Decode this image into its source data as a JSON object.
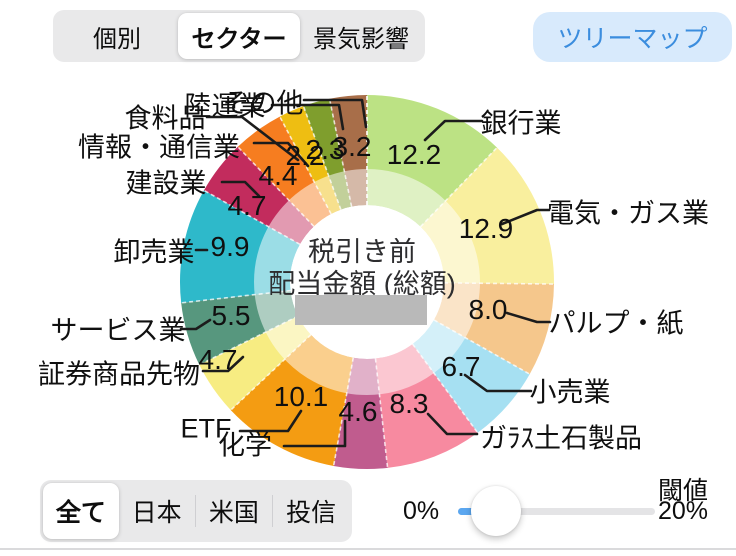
{
  "view_tabs": {
    "items": [
      {
        "label": "個別",
        "selected": false
      },
      {
        "label": "セクター",
        "selected": true
      },
      {
        "label": "景気影響",
        "selected": false
      }
    ]
  },
  "treemap_button": {
    "label": "ツリーマップ",
    "text_color": "#3b8dde",
    "bg_color": "#d8eafc"
  },
  "chart_data": {
    "type": "donut",
    "center_title_lines": [
      "税引き前",
      "配当金額 (総額)"
    ],
    "center_value_masked": true,
    "start_angle_deg": 0,
    "direction": "clockwise",
    "values_are_percent": true,
    "legend_position": "around-chart",
    "segments": [
      {
        "label": "銀行業",
        "value": 12.2,
        "display": "12.2",
        "color": "#bce284"
      },
      {
        "label": "電気・ガス業",
        "value": 12.9,
        "display": "12.9",
        "color": "#f9ef9e"
      },
      {
        "label": "パルプ・紙",
        "value": 8.0,
        "display": "8.0",
        "color": "#f5c78c"
      },
      {
        "label": "小売業",
        "value": 6.7,
        "display": "6.7",
        "color": "#a6e0f2"
      },
      {
        "label": "ガﾗｽ土石製品",
        "value": 8.3,
        "display": "8.3",
        "color": "#f78aa0"
      },
      {
        "label": "化学",
        "value": 4.6,
        "display": "4.6",
        "color": "#c05c8e"
      },
      {
        "label": "ETF",
        "value": 10.1,
        "display": "10.1",
        "color": "#f49c12"
      },
      {
        "label": "証券商品先物",
        "value": 4.7,
        "display": "4.7",
        "color": "#f7ec82"
      },
      {
        "label": "サービス業",
        "value": 5.5,
        "display": "5.5",
        "color": "#57977e"
      },
      {
        "label": "卸売業",
        "value": 9.9,
        "display": "9.9",
        "color": "#2eb9ca"
      },
      {
        "label": "建設業",
        "value": 4.7,
        "display": "4.7",
        "color": "#c22c5d"
      },
      {
        "label": "情報・通信業",
        "value": 4.4,
        "display": "4.4",
        "color": "#f67d20"
      },
      {
        "label": "食料品",
        "value": 2.2,
        "display": "2.2",
        "color": "#eebe12"
      },
      {
        "label": "陸運業",
        "value": 2.3,
        "display": "2.3",
        "color": "#7f9e2d"
      },
      {
        "label": "その他",
        "value": 3.2,
        "display": "3.2",
        "color": "#a86e49"
      }
    ]
  },
  "filter_tabs": {
    "items": [
      {
        "label": "全て",
        "selected": true
      },
      {
        "label": "日本",
        "selected": false
      },
      {
        "label": "米国",
        "selected": false
      },
      {
        "label": "投信",
        "selected": false
      }
    ]
  },
  "threshold_slider": {
    "title": "閾値",
    "min_label": "0%",
    "max_label": "20%",
    "active_color": "#5ba7f0"
  }
}
